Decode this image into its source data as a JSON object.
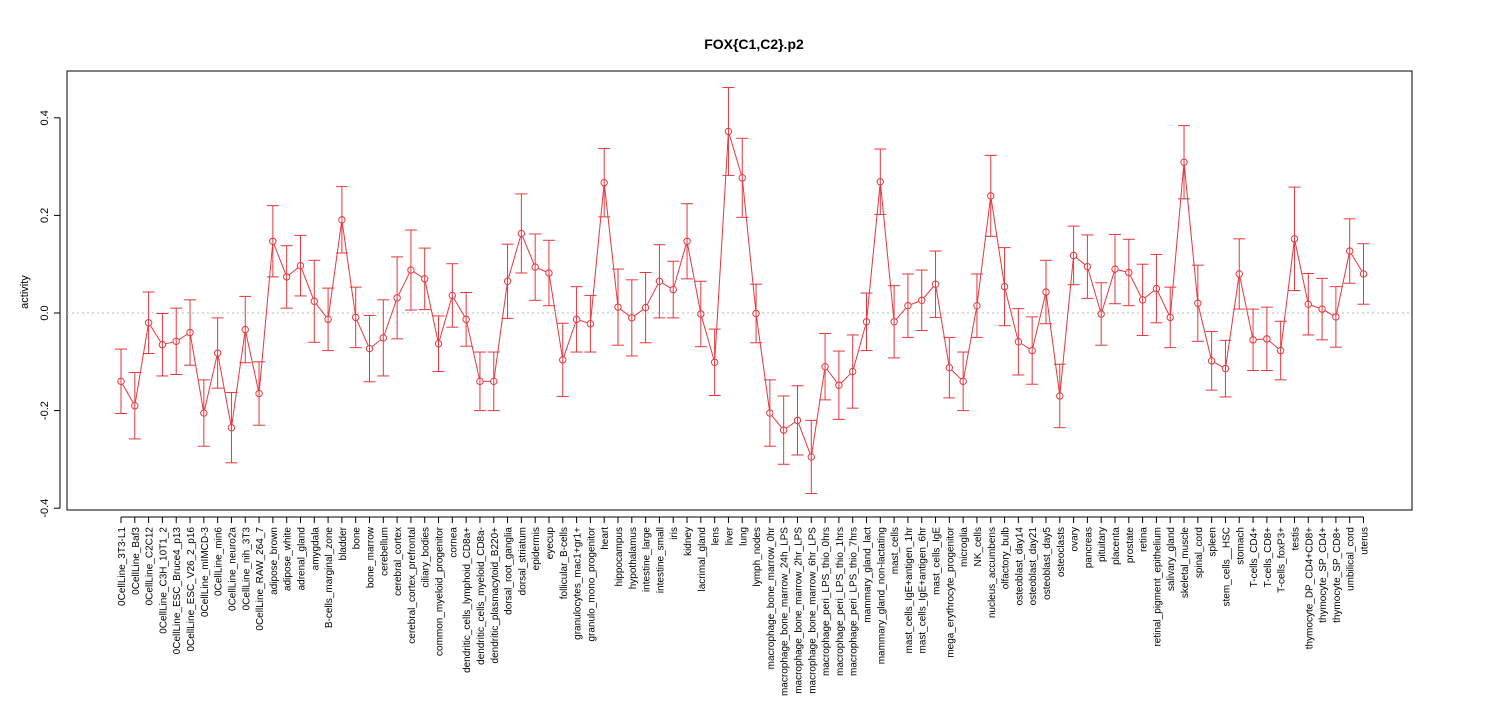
{
  "chart_data": {
    "type": "line",
    "title": "FOX{C1,C2}.p2",
    "xlabel": "",
    "ylabel": "activity",
    "ylim": [
      -0.4,
      0.5
    ],
    "yticks": [
      -0.4,
      -0.2,
      0.0,
      0.2,
      0.4
    ],
    "ytick_labels": [
      "-0.4",
      "-0.2",
      "0.0",
      "0.2",
      "0.4"
    ],
    "reference_line": 0.0,
    "grid": false,
    "series_color": "#e8363d",
    "zero_line_color": "#bbbbbb",
    "categories": [
      "0CellLine_3T3-L1",
      "0CellLine_Baf3",
      "0CellLine_C2C12",
      "0CellLine_C3H_10T1_2",
      "0CellLine_ESC_Bruce4_p13",
      "0CellLine_ESC_V26_2_p16",
      "0CellLine_mIMCD-3",
      "0CellLine_min6",
      "0CellLine_neuro2a",
      "0CellLine_nih_3T3",
      "0CellLine_RAW_264_7",
      "adipose_brown",
      "adipose_white",
      "adrenal_gland",
      "amygdala",
      "B-cells_marginal_zone",
      "bladder",
      "bone",
      "bone_marrow",
      "cerebellum",
      "cerebral_cortex",
      "cerebral_cortex_prefrontal",
      "ciliary_bodies",
      "common_myeloid_progenitor",
      "cornea",
      "dendritic_cells_lymphoid_CD8a+",
      "dendritic_cells_myeloid_CD8a-",
      "dendritic_plasmacytoid_B220+",
      "dorsal_root_ganglia",
      "dorsal_striatum",
      "epidermis",
      "eyecup",
      "follicular_B-cells",
      "granulocytes_mac1+gr1+",
      "granulo_mono_progenitor",
      "heart",
      "hippocampus",
      "hypothalamus",
      "intestine_large",
      "intestine_small",
      "iris",
      "kidney",
      "lacrimal_gland",
      "lens",
      "liver",
      "lung",
      "lymph_nodes",
      "macrophage_bone_marrow_0hr",
      "macrophage_bone_marrow_24h_LPS",
      "macrophage_bone_marrow_2hr_LPS",
      "macrophage_bone_marrow_6hr_LPS",
      "macrophage_peri_LPS_thio_0hrs",
      "macrophage_peri_LPS_thio_1hrs",
      "macrophage_peri_LPS_thio_7hrs",
      "mammary_gland_lact",
      "mammary_gland_non-lactating",
      "mast_cells",
      "mast_cells_IgE+antigen_1hr",
      "mast_cells_IgE+antigen_6hr",
      "mast_cells_IgE",
      "mega_erythrocyte_progenitor",
      "microglia",
      "NK_cells",
      "nucleus_accumbens",
      "olfactory_bulb",
      "osteoblast_day14",
      "osteoblast_day21",
      "osteoblast_day5",
      "osteoclasts",
      "ovary",
      "pancreas",
      "pituitary",
      "placenta",
      "prostate",
      "retina",
      "retinal_pigment_epithelium",
      "salivary_gland",
      "skeletal_muscle",
      "spinal_cord",
      "spleen",
      "stem_cells__HSC",
      "stomach",
      "T-cells_CD4+",
      "T-cells_CD8+",
      "T-cells_foxP3+",
      "testis",
      "thymocyte_DP_CD4+CD8+",
      "thymocyte_SP_CD4+",
      "thymocyte_SP_CD8+",
      "umbilical_cord",
      "uterus"
    ],
    "values": [
      -0.14,
      -0.19,
      -0.02,
      -0.065,
      -0.058,
      -0.04,
      -0.205,
      -0.082,
      -0.235,
      -0.034,
      -0.165,
      0.147,
      0.074,
      0.097,
      0.024,
      -0.013,
      0.191,
      -0.009,
      -0.073,
      -0.051,
      0.031,
      0.088,
      0.07,
      -0.063,
      0.036,
      -0.013,
      -0.14,
      -0.14,
      0.065,
      0.163,
      0.094,
      0.082,
      -0.096,
      -0.013,
      -0.022,
      0.267,
      0.012,
      -0.01,
      0.011,
      0.065,
      0.048,
      0.147,
      -0.002,
      -0.101,
      0.372,
      0.277,
      -0.001,
      -0.205,
      -0.24,
      -0.22,
      -0.295,
      -0.11,
      -0.148,
      -0.12,
      -0.018,
      0.269,
      -0.018,
      0.015,
      0.026,
      0.059,
      -0.112,
      -0.14,
      0.015,
      0.24,
      0.054,
      -0.059,
      -0.077,
      0.043,
      -0.17,
      0.118,
      0.095,
      -0.002,
      0.09,
      0.083,
      0.027,
      0.05,
      -0.009,
      0.309,
      0.02,
      -0.098,
      -0.114,
      0.08,
      -0.055,
      -0.053,
      -0.077,
      0.152,
      0.018,
      0.008,
      -0.008,
      0.127,
      0.08
    ],
    "errors": [
      0.066,
      0.068,
      0.063,
      0.064,
      0.068,
      0.067,
      0.068,
      0.072,
      0.072,
      0.068,
      0.065,
      0.073,
      0.064,
      0.062,
      0.084,
      0.064,
      0.068,
      0.062,
      0.068,
      0.078,
      0.084,
      0.082,
      0.063,
      0.057,
      0.065,
      0.055,
      0.06,
      0.06,
      0.076,
      0.081,
      0.068,
      0.067,
      0.075,
      0.067,
      0.058,
      0.07,
      0.078,
      0.078,
      0.072,
      0.075,
      0.058,
      0.077,
      0.067,
      0.068,
      0.09,
      0.081,
      0.06,
      0.068,
      0.07,
      0.071,
      0.075,
      0.068,
      0.07,
      0.075,
      0.059,
      0.067,
      0.074,
      0.065,
      0.062,
      0.068,
      0.062,
      0.06,
      0.065,
      0.083,
      0.08,
      0.068,
      0.069,
      0.065,
      0.065,
      0.06,
      0.065,
      0.064,
      0.071,
      0.068,
      0.073,
      0.07,
      0.062,
      0.075,
      0.078,
      0.06,
      0.058,
      0.072,
      0.063,
      0.065,
      0.06,
      0.106,
      0.063,
      0.063,
      0.062,
      0.066,
      0.062
    ]
  }
}
